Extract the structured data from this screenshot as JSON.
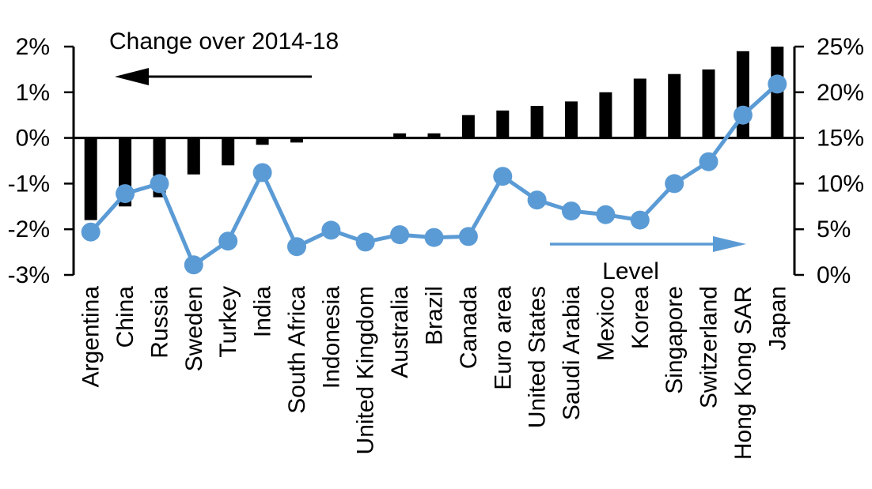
{
  "chart_data": {
    "type": "bar+line",
    "title": "",
    "categories": [
      "Argentina",
      "China",
      "Russia",
      "Sweden",
      "Turkey",
      "India",
      "South Africa",
      "Indonesia",
      "United Kingdom",
      "Australia",
      "Brazil",
      "Canada",
      "Euro area",
      "United States",
      "Saudi Arabia",
      "Mexico",
      "Korea",
      "Singapore",
      "Switzerland",
      "Hong Kong SAR",
      "Japan"
    ],
    "series": [
      {
        "name": "Change over 2014-18",
        "type": "bar",
        "axis": "left",
        "color": "#000000",
        "values": [
          -1.8,
          -1.5,
          -1.3,
          -0.8,
          -0.6,
          -0.15,
          -0.1,
          0,
          0,
          0.1,
          0.1,
          0.5,
          0.6,
          0.7,
          0.8,
          1.0,
          1.3,
          1.4,
          1.5,
          1.9,
          2.0
        ]
      },
      {
        "name": "Level",
        "type": "line",
        "axis": "right",
        "color": "#5B9BD5",
        "values": [
          4.7,
          8.9,
          10.0,
          1.1,
          3.7,
          11.2,
          3.1,
          4.9,
          3.6,
          4.4,
          4.1,
          4.2,
          10.8,
          8.2,
          7.0,
          6.6,
          6.0,
          10.0,
          12.4,
          17.5,
          20.9
        ]
      }
    ],
    "left_axis": {
      "ticks": [
        2,
        1,
        0,
        -1,
        -2,
        -3
      ],
      "labels": [
        "2%",
        "1%",
        "0%",
        "-1%",
        "-2%",
        "-3%"
      ],
      "range": [
        -3,
        2
      ]
    },
    "right_axis": {
      "ticks": [
        25,
        20,
        15,
        10,
        5,
        0
      ],
      "labels": [
        "25%",
        "20%",
        "15%",
        "10%",
        "5%",
        "0%"
      ],
      "range": [
        0,
        25
      ]
    },
    "annotations": {
      "bar_series_label": "Change over 2014-18",
      "line_series_label": "Level"
    },
    "grid": false,
    "legend_position": "annotated arrows in plot"
  },
  "colors": {
    "bar": "#000000",
    "line": "#5B9BD5",
    "text": "#000000",
    "background": "#FFFFFF"
  }
}
